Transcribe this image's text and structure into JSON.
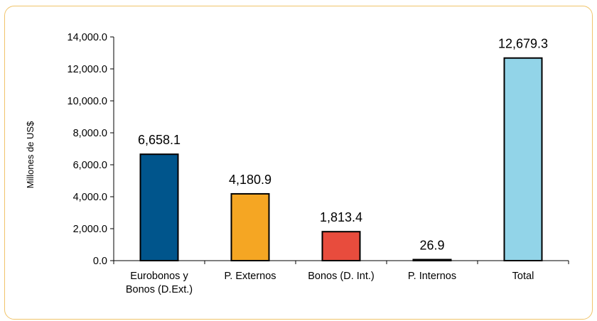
{
  "chart_data": {
    "type": "bar",
    "ylabel": "Millones de US$",
    "xlabel": "",
    "title": "",
    "ylim": [
      0,
      14000
    ],
    "yticks": [
      0,
      2000,
      4000,
      6000,
      8000,
      10000,
      12000,
      14000
    ],
    "ytick_labels": [
      "0.0",
      "2,000.0",
      "4,000.0",
      "6,000.0",
      "8,000.0",
      "10,000.0",
      "12,000.0",
      "14,000.0"
    ],
    "categories": [
      [
        "Eurobonos y",
        "Bonos (D.Ext.)"
      ],
      [
        "P. Externos"
      ],
      [
        "Bonos (D. Int.)"
      ],
      [
        "P. Internos"
      ],
      [
        "Total"
      ]
    ],
    "values": [
      6658.1,
      4180.9,
      1813.4,
      26.9,
      12679.3
    ],
    "value_labels": [
      "6,658.1",
      "4,180.9",
      "1,813.4",
      "26.9",
      "12,679.3"
    ],
    "colors": [
      "#00558c",
      "#f5a623",
      "#e84c3d",
      "#c0392b",
      "#92d4e8"
    ],
    "grid": false,
    "legend": "none"
  }
}
